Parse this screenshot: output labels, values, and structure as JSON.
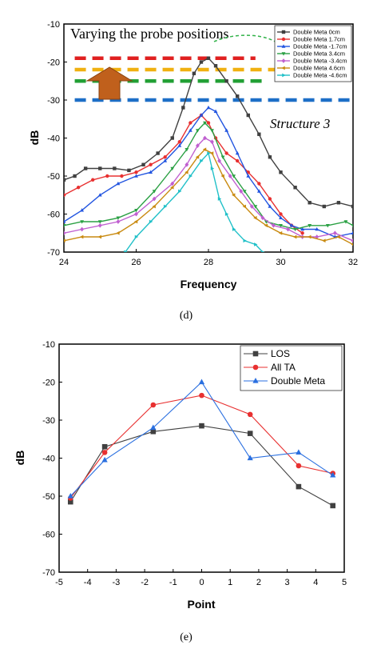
{
  "chart_data": [
    {
      "type": "line",
      "panel_label": "(d)",
      "xlabel": "Frequency",
      "ylabel": "dB",
      "xlim": [
        24,
        32
      ],
      "ylim": [
        -70,
        -10
      ],
      "xticks": [
        24,
        26,
        28,
        30,
        32
      ],
      "yticks": [
        -10,
        -20,
        -30,
        -40,
        -50,
        -60,
        -70
      ],
      "grid": false,
      "legend_position": "top-right",
      "annotations": {
        "title_text": "Varying the probe positions",
        "structure_text": "Structure 3"
      },
      "reference_levels": [
        {
          "y": -19,
          "color": "#e02020",
          "x": [
            24.3,
            29.3
          ]
        },
        {
          "y": -22,
          "color": "#f0b010",
          "x": [
            24.3,
            29.9
          ]
        },
        {
          "y": -25,
          "color": "#22a035",
          "x": [
            24.3,
            29.6
          ]
        },
        {
          "y": -30,
          "color": "#1d6fc7",
          "x": [
            24.3,
            32.0
          ]
        }
      ],
      "series": [
        {
          "name": "Double Meta 0cm",
          "color": "#404040",
          "marker": "square",
          "x": [
            24,
            24.3,
            24.6,
            25,
            25.4,
            25.8,
            26.2,
            26.6,
            27,
            27.3,
            27.6,
            27.8,
            28,
            28.2,
            28.5,
            28.8,
            29.1,
            29.4,
            29.7,
            30,
            30.4,
            30.8,
            31.2,
            31.6,
            32
          ],
          "y": [
            -51,
            -50,
            -48,
            -48,
            -48,
            -48.5,
            -47,
            -44,
            -40,
            -32,
            -23,
            -20,
            -19,
            -21,
            -25,
            -29,
            -34,
            -39,
            -45,
            -49,
            -53,
            -57,
            -58,
            -57,
            -58
          ]
        },
        {
          "name": "Double Meta 1.7cm",
          "color": "#e83030",
          "marker": "circle",
          "x": [
            24,
            24.4,
            24.8,
            25.2,
            25.6,
            26,
            26.4,
            26.8,
            27.2,
            27.5,
            27.8,
            28,
            28.2,
            28.5,
            28.8,
            29.1,
            29.4,
            29.7,
            30,
            30.3,
            30.6
          ],
          "y": [
            -55,
            -53,
            -51,
            -50,
            -50,
            -49,
            -47,
            -45,
            -41,
            -36,
            -34,
            -36,
            -40,
            -44,
            -46,
            -49,
            -52,
            -56,
            -60,
            -63,
            -65
          ]
        },
        {
          "name": "Double Meta -1.7cm",
          "color": "#2255e0",
          "marker": "triangle-up",
          "x": [
            24,
            24.5,
            25,
            25.5,
            26,
            26.4,
            26.8,
            27.2,
            27.5,
            27.8,
            28,
            28.2,
            28.5,
            28.8,
            29.1,
            29.4,
            29.7,
            30,
            30.3,
            30.6,
            31,
            31.5,
            32
          ],
          "y": [
            -62,
            -59,
            -55,
            -52,
            -50,
            -49,
            -46,
            -42,
            -38,
            -34,
            -32,
            -33,
            -38,
            -44,
            -50,
            -54,
            -58,
            -61,
            -63,
            -64,
            -64,
            -66,
            -65
          ]
        },
        {
          "name": "Double Meta 3.4cm",
          "color": "#2aa043",
          "marker": "triangle-down",
          "x": [
            24,
            24.5,
            25,
            25.5,
            26,
            26.5,
            27,
            27.4,
            27.7,
            27.9,
            28.1,
            28.4,
            28.7,
            29,
            29.3,
            29.6,
            30,
            30.4,
            30.8,
            31.3,
            31.8,
            32
          ],
          "y": [
            -63,
            -62,
            -62,
            -61,
            -59,
            -54,
            -48,
            -43,
            -38,
            -36,
            -38,
            -45,
            -50,
            -54,
            -58,
            -62,
            -63,
            -64,
            -63,
            -63,
            -62,
            -63
          ]
        },
        {
          "name": "Double Meta -3.4cm",
          "color": "#c060d0",
          "marker": "diamond",
          "x": [
            24,
            24.5,
            25,
            25.5,
            26,
            26.5,
            27,
            27.4,
            27.7,
            27.9,
            28.1,
            28.3,
            28.6,
            28.9,
            29.2,
            29.5,
            29.8,
            30.2,
            30.6,
            31,
            31.5,
            32
          ],
          "y": [
            -65,
            -64,
            -63,
            -62,
            -60,
            -56,
            -52,
            -47,
            -42,
            -40,
            -41,
            -46,
            -50,
            -54,
            -58,
            -61,
            -63,
            -64,
            -66,
            -66,
            -65,
            -67
          ]
        },
        {
          "name": "Double Meta 4.6cm",
          "color": "#c98a10",
          "marker": "triangle-left",
          "x": [
            24,
            24.5,
            25,
            25.5,
            26,
            26.5,
            27,
            27.4,
            27.7,
            27.9,
            28.1,
            28.4,
            28.7,
            29,
            29.3,
            29.6,
            30,
            30.4,
            30.8,
            31.2,
            31.6,
            32
          ],
          "y": [
            -67,
            -66,
            -66,
            -65,
            -62,
            -58,
            -53,
            -49,
            -45,
            -43,
            -44,
            -50,
            -55,
            -58,
            -61,
            -63,
            -65,
            -66,
            -66,
            -67,
            -66,
            -68
          ]
        },
        {
          "name": "Double Meta -4.6cm",
          "color": "#20c0c8",
          "marker": "triangle-right",
          "x": [
            25.7,
            26,
            26.4,
            26.8,
            27.2,
            27.5,
            27.8,
            28,
            28.1,
            28.3,
            28.5,
            28.7,
            29,
            29.3,
            29.5
          ],
          "y": [
            -70,
            -66,
            -62,
            -58,
            -54,
            -50,
            -46,
            -44,
            -48,
            -56,
            -60,
            -64,
            -67,
            -68,
            -70
          ]
        }
      ]
    },
    {
      "type": "line",
      "panel_label": "(e)",
      "xlabel": "Point",
      "ylabel": "dB",
      "xlim": [
        -5,
        5
      ],
      "ylim": [
        -70,
        -10
      ],
      "xticks": [
        -5,
        -4,
        -3,
        -2,
        -1,
        0,
        1,
        2,
        3,
        4,
        5
      ],
      "yticks": [
        -10,
        -20,
        -30,
        -40,
        -50,
        -60,
        -70
      ],
      "grid": false,
      "legend_position": "top-right",
      "series": [
        {
          "name": "LOS",
          "color": "#404040",
          "marker": "square",
          "x": [
            -4.6,
            -3.4,
            -1.7,
            0,
            1.7,
            3.4,
            4.6
          ],
          "y": [
            -51.5,
            -37,
            -33,
            -31.5,
            -33.5,
            -47.5,
            -52.5
          ]
        },
        {
          "name": "All TA",
          "color": "#e83030",
          "marker": "circle",
          "x": [
            -4.6,
            -3.4,
            -1.7,
            0,
            1.7,
            3.4,
            4.6
          ],
          "y": [
            -50.5,
            -38.5,
            -26,
            -23.5,
            -28.5,
            -42,
            -44
          ]
        },
        {
          "name": "Double Meta",
          "color": "#2a6fe0",
          "marker": "triangle-up",
          "x": [
            -4.6,
            -3.4,
            -1.7,
            0,
            1.7,
            3.4,
            4.6
          ],
          "y": [
            -50,
            -40.5,
            -32,
            -20,
            -40,
            -38.5,
            -44.5
          ]
        }
      ]
    }
  ]
}
